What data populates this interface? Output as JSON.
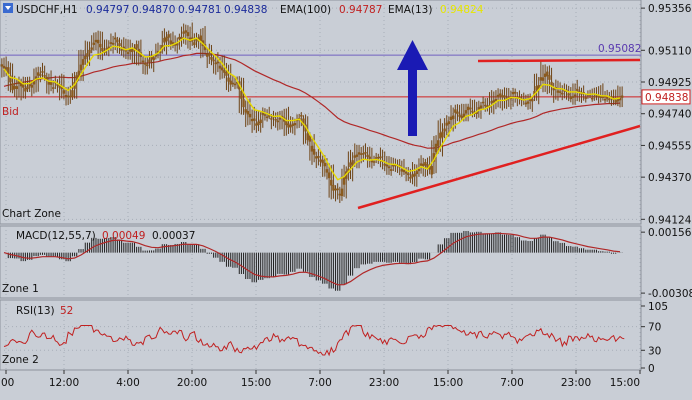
{
  "header": {
    "symbol": "USDCHF,H1",
    "ohlc": [
      "0.94797",
      "0.94870",
      "0.94781",
      "0.94838"
    ],
    "ema100_label": "EMA(100)",
    "ema100_value": "0.94787",
    "ema13_label": "EMA(13)",
    "ema13_value": "0.94824"
  },
  "colors": {
    "background": "#c9ced6",
    "plot_bg": "#c9ced6",
    "grid": "#a8aeb8",
    "candle": "#8a5a1e",
    "candle_wick": "#6e4416",
    "ema13": "#e6d800",
    "ema100": "#b02828",
    "bid_line": "#d02020",
    "resistance_line": "#7060c0",
    "trendline": "#e02020",
    "arrow": "#1a1ab4",
    "macd_hist": "#222222",
    "macd_signal": "#b02828",
    "rsi_line": "#c02020",
    "header_blue": "#1a2a9a",
    "header_red": "#c02020",
    "header_yellow": "#e6e600"
  },
  "zones": {
    "main": "Chart Zone",
    "macd": "Zone 1",
    "rsi": "Zone 2"
  },
  "bid_label": "Bid",
  "price_tag": "0.94838",
  "resistance_tag": "0.95082",
  "chart_data": [
    {
      "type": "line",
      "panel": "price",
      "y_ticks": [
        "0.95356",
        "0.95110",
        "0.94925",
        "0.94740",
        "0.94555",
        "0.94370",
        "0.94124"
      ],
      "ylim": [
        0.9412,
        0.9538
      ],
      "resistance_level": 0.95082,
      "bid_level": 0.94838,
      "x_ticks": [
        "00",
        "12:00",
        "4:00",
        "20:00",
        "15:00",
        "7:00",
        "23:00",
        "15:00",
        "7:00",
        "23:00",
        "15:00"
      ],
      "series": [
        {
          "values": [
            0.95,
            0.9488,
            0.9493,
            0.9487,
            0.9492,
            0.9498,
            0.9496,
            0.949,
            0.9492,
            0.9486,
            0.9484,
            0.9496,
            0.9506,
            0.9512,
            0.9516,
            0.951,
            0.9514,
            0.9517,
            0.9512,
            0.9509,
            0.9514,
            0.9506,
            0.9503,
            0.9508,
            0.9512,
            0.952,
            0.9514,
            0.9518,
            0.9522,
            0.9515,
            0.952,
            0.951,
            0.9505,
            0.9502,
            0.9497,
            0.949,
            0.9492,
            0.9478,
            0.9472,
            0.9468,
            0.9474,
            0.9472,
            0.947,
            0.9473,
            0.9466,
            0.947,
            0.9472,
            0.946,
            0.945,
            0.9446,
            0.944,
            0.943,
            0.9427,
            0.944,
            0.9448,
            0.9452,
            0.945,
            0.9446,
            0.9448,
            0.9445,
            0.9442,
            0.9444,
            0.944,
            0.9437,
            0.9442,
            0.9446,
            0.944,
            0.9455,
            0.9465,
            0.947,
            0.9476,
            0.9472,
            0.9478,
            0.9475,
            0.948,
            0.9478,
            0.9482,
            0.9486,
            0.9482,
            0.9486,
            0.9483,
            0.948,
            0.9484,
            0.9492,
            0.9498,
            0.949,
            0.9486,
            0.9488,
            0.9484,
            0.9487,
            0.9485,
            0.9484,
            0.9486,
            0.9483,
            0.9484,
            0.948,
            0.9484
          ]
        }
      ]
    },
    {
      "type": "bar",
      "panel": "macd",
      "title": "MACD(12,55,7)",
      "values_text": [
        "0.00049",
        "0.00037"
      ],
      "y_ticks": [
        "0.00156",
        "-0.00308"
      ],
      "ylim": [
        -0.0033,
        0.0018
      ]
    },
    {
      "type": "line",
      "panel": "rsi",
      "title": "RSI(13)",
      "value_text": "52",
      "y_ticks": [
        "105",
        "70",
        "30",
        "0"
      ],
      "ylim": [
        0,
        105
      ]
    }
  ]
}
